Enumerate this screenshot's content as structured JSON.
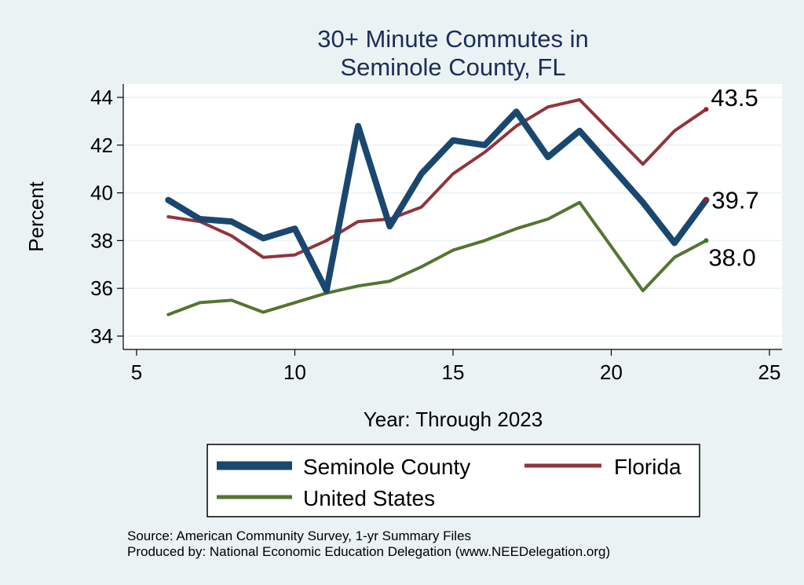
{
  "chart_data": {
    "type": "line",
    "title": [
      "30+ Minute Commutes in",
      "Seminole County, FL"
    ],
    "xlabel": "Year: Through 2023",
    "ylabel": "Percent",
    "xlim": [
      5,
      25
    ],
    "ylim": [
      34,
      44
    ],
    "xticks": [
      5,
      10,
      15,
      20,
      25
    ],
    "yticks": [
      34,
      36,
      38,
      40,
      42,
      44
    ],
    "grid": "horizontal",
    "legend_position": "bottom",
    "series": [
      {
        "name": "Seminole County",
        "color": "#1a476f",
        "x": [
          6,
          7,
          8,
          9,
          10,
          11,
          12,
          13,
          14,
          15,
          16,
          17,
          18,
          19,
          21,
          22,
          23
        ],
        "y": [
          39.7,
          38.9,
          38.8,
          38.1,
          38.5,
          35.9,
          42.8,
          38.6,
          40.8,
          42.2,
          42.0,
          43.4,
          41.5,
          42.6,
          39.6,
          37.9,
          39.7
        ],
        "end_label": "39.7"
      },
      {
        "name": "Florida",
        "color": "#90353b",
        "x": [
          6,
          7,
          8,
          9,
          10,
          11,
          12,
          13,
          14,
          15,
          16,
          17,
          18,
          19,
          21,
          22,
          23
        ],
        "y": [
          39.0,
          38.8,
          38.2,
          37.3,
          37.4,
          38.0,
          38.8,
          38.9,
          39.4,
          40.8,
          41.7,
          42.8,
          43.6,
          43.9,
          41.2,
          42.6,
          43.5
        ],
        "end_label": "43.5"
      },
      {
        "name": "United States",
        "color": "#55752f",
        "x": [
          6,
          7,
          8,
          9,
          10,
          11,
          12,
          13,
          14,
          15,
          16,
          17,
          18,
          19,
          21,
          22,
          23
        ],
        "y": [
          34.9,
          35.4,
          35.5,
          35.0,
          35.4,
          35.8,
          36.1,
          36.3,
          36.9,
          37.6,
          38.0,
          38.5,
          38.9,
          39.6,
          35.9,
          37.3,
          38.0
        ],
        "end_label": "38.0"
      }
    ],
    "notes": [
      "Source: American Community Survey, 1-yr Summary Files",
      "Produced by: National Economic Education Delegation (www.NEEDelegation.org)"
    ]
  }
}
